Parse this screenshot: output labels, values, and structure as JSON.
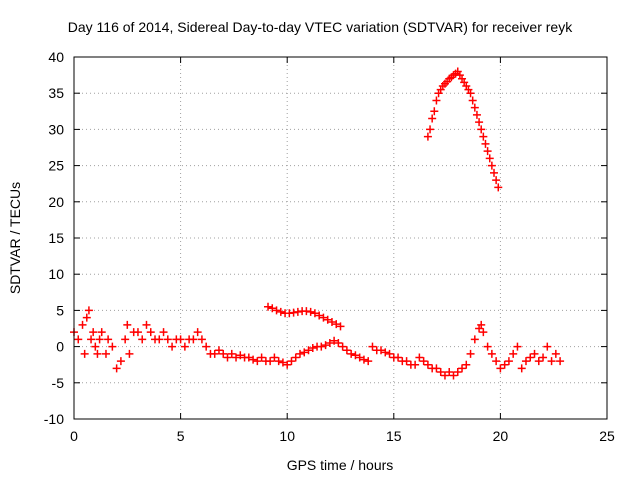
{
  "chart_data": {
    "type": "scatter",
    "title": "Day 116 of 2014, Sidereal Day-to-day VTEC variation (SDTVAR) for receiver reyk",
    "xlabel": "GPS time / hours",
    "ylabel": "SDTVAR / TECUs",
    "xlim": [
      0,
      25
    ],
    "ylim": [
      -10,
      40
    ],
    "xticks": [
      0,
      5,
      10,
      15,
      20,
      25
    ],
    "yticks": [
      -10,
      -5,
      0,
      5,
      10,
      15,
      20,
      25,
      30,
      35,
      40
    ],
    "grid": true,
    "marker": "+",
    "marker_color": "#ff0000",
    "series": [
      {
        "name": "SDTVAR",
        "x": [
          0.0,
          0.2,
          0.4,
          0.5,
          0.6,
          0.7,
          0.8,
          0.9,
          1.0,
          1.1,
          1.2,
          1.3,
          1.5,
          1.6,
          1.8,
          2.0,
          2.2,
          2.4,
          2.5,
          2.6,
          2.8,
          3.0,
          3.2,
          3.4,
          3.6,
          3.8,
          4.0,
          4.2,
          4.4,
          4.6,
          4.8,
          5.0,
          5.2,
          5.4,
          5.6,
          5.8,
          6.0,
          6.2,
          6.4,
          6.6,
          6.8,
          7.0,
          7.2,
          7.4,
          7.6,
          7.8,
          8.0,
          8.2,
          8.4,
          8.6,
          8.8,
          9.0,
          9.2,
          9.4,
          9.6,
          9.8,
          10.0,
          10.2,
          10.4,
          10.6,
          10.8,
          11.0,
          11.2,
          11.4,
          11.6,
          11.8,
          12.0,
          12.2,
          12.4,
          12.6,
          12.8,
          13.0,
          13.2,
          13.4,
          13.6,
          13.8,
          14.0,
          14.2,
          14.4,
          14.6,
          14.8,
          15.0,
          15.2,
          15.4,
          15.6,
          15.8,
          16.0,
          16.2,
          16.4,
          16.6,
          16.8,
          17.0,
          17.2,
          17.4,
          17.6,
          17.8,
          18.0,
          18.2,
          18.4,
          18.6,
          18.8,
          19.0,
          19.1,
          19.2,
          19.4,
          19.6,
          19.8,
          20.0,
          20.2,
          20.4,
          20.6,
          20.8,
          21.0,
          21.2,
          21.4,
          21.6,
          21.8,
          22.0,
          22.2,
          22.4,
          22.6,
          22.8
        ],
        "y": [
          2.0,
          1.0,
          3.0,
          -1.0,
          4.0,
          5.0,
          1.0,
          2.0,
          0.0,
          -1.0,
          1.0,
          2.0,
          -1.0,
          1.0,
          0.0,
          -3.0,
          -2.0,
          1.0,
          3.0,
          -1.0,
          2.0,
          2.0,
          1.0,
          3.0,
          2.0,
          1.0,
          1.0,
          2.0,
          1.0,
          0.0,
          1.0,
          1.0,
          0.0,
          1.0,
          1.0,
          2.0,
          1.0,
          0.0,
          -1.0,
          -1.0,
          -0.5,
          -1.0,
          -1.5,
          -1.0,
          -1.5,
          -1.2,
          -1.5,
          -1.5,
          -1.8,
          -2.0,
          -1.5,
          -2.0,
          -2.0,
          -1.5,
          -2.0,
          -2.2,
          -2.5,
          -2.0,
          -1.5,
          -1.0,
          -0.8,
          -0.5,
          -0.2,
          0.0,
          0.0,
          0.2,
          0.5,
          0.8,
          0.5,
          0.0,
          -0.5,
          -1.0,
          -1.2,
          -1.5,
          -1.8,
          -2.0,
          0.0,
          -0.5,
          -0.5,
          -0.8,
          -1.0,
          -1.5,
          -1.5,
          -2.0,
          -2.0,
          -2.5,
          -2.5,
          -1.5,
          -2.0,
          -2.5,
          -3.0,
          -3.0,
          -3.5,
          -4.0,
          -3.5,
          -4.0,
          -3.5,
          -3.0,
          -2.5,
          -1.0,
          1.0,
          2.5,
          3.0,
          2.0,
          0.0,
          -1.0,
          -2.0,
          -3.0,
          -2.5,
          -2.0,
          -1.0,
          0.0,
          -3.0,
          -2.0,
          -1.5,
          -1.0,
          -2.0,
          -1.5,
          0.0,
          -2.0,
          -1.0,
          -2.0
        ]
      },
      {
        "name": "SDTVAR",
        "x": [
          9.1,
          9.3,
          9.5,
          9.7,
          9.9,
          10.1,
          10.3,
          10.5,
          10.7,
          10.9,
          11.1,
          11.3,
          11.5,
          11.7,
          11.9,
          12.1,
          12.3,
          12.5
        ],
        "y": [
          5.5,
          5.3,
          5.0,
          4.8,
          4.6,
          4.6,
          4.7,
          4.8,
          4.9,
          4.9,
          4.8,
          4.6,
          4.3,
          4.0,
          3.7,
          3.4,
          3.1,
          2.8
        ]
      },
      {
        "name": "SDTVAR",
        "x": [
          16.6,
          16.7,
          16.8,
          16.9,
          17.0,
          17.1,
          17.2,
          17.3,
          17.4,
          17.5,
          17.6,
          17.7,
          17.8,
          17.9,
          18.0,
          18.1,
          18.2,
          18.3,
          18.4,
          18.5,
          18.6,
          18.7,
          18.8,
          18.9,
          19.0,
          19.1,
          19.2,
          19.3,
          19.4,
          19.5,
          19.6,
          19.7,
          19.8,
          19.9
        ],
        "y": [
          29.0,
          30.0,
          31.5,
          32.5,
          34.0,
          35.0,
          35.5,
          36.0,
          36.3,
          36.6,
          37.0,
          37.2,
          37.5,
          37.7,
          38.0,
          37.5,
          37.0,
          36.5,
          36.0,
          35.5,
          35.0,
          34.0,
          33.0,
          32.0,
          31.0,
          30.0,
          29.0,
          28.0,
          27.0,
          26.0,
          25.0,
          24.0,
          23.0,
          22.0
        ]
      }
    ]
  }
}
